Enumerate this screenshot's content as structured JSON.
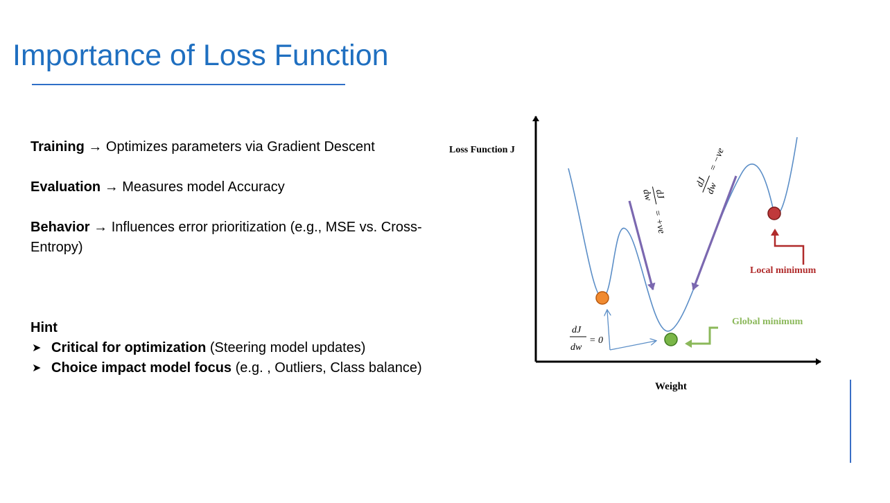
{
  "slide": {
    "title": "Importance of Loss Function"
  },
  "content": {
    "items": [
      {
        "term": "Training",
        "arrow": "→",
        "text": "Optimizes parameters via Gradient Descent"
      },
      {
        "term": "Evaluation",
        "arrow": "→",
        "text": "Measures model Accuracy"
      },
      {
        "term": "Behavior",
        "arrow": "→",
        "text": "Influences error prioritization (e.g., MSE vs. Cross-Entropy)"
      }
    ],
    "hint": {
      "heading": "Hint",
      "bullet_icon": "arrowhead-bullet-icon",
      "points": [
        {
          "bold": "Critical for optimization",
          "rest": " (Steering model updates)"
        },
        {
          "bold": "Choice impact model focus",
          "rest": " (e.g. , Outliers, Class balance)"
        }
      ]
    }
  },
  "diagram": {
    "y_axis_label": "Loss Function J",
    "x_axis_label": "Weight",
    "slope_pos_num": "dJ",
    "slope_pos_den": "dw",
    "slope_pos_rhs": "= +ve",
    "slope_neg_num": "dJ",
    "slope_neg_den": "dw",
    "slope_neg_rhs": "= −ve",
    "zero_num": "dJ",
    "zero_den": "dw",
    "zero_rhs": "= 0",
    "global_minimum_label": "Global minimum",
    "local_minimum_label": "Local minimum",
    "colors": {
      "title": "#1f6fc0",
      "curve": "#5b8ec7",
      "slope_arrows": "#7b68b0",
      "orange_point": "#f08a30",
      "green_point": "#7ab648",
      "red_point": "#c0393b",
      "global_label": "#8bb85a",
      "local_label": "#b02a2a"
    }
  }
}
